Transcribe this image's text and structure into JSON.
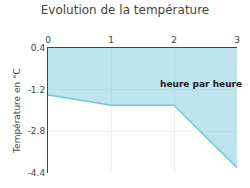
{
  "chart_data": {
    "type": "area",
    "title": "Evolution de la température",
    "y_label": "Température en °C",
    "x": [
      0,
      1,
      2,
      3
    ],
    "series": [
      {
        "name": "Température",
        "color": "#6ec6da",
        "values": [
          -1.4,
          -1.8,
          -1.8,
          -4.2
        ]
      }
    ],
    "xlim": [
      0,
      3
    ],
    "xticks": [
      0,
      1,
      2,
      3
    ],
    "ylim": [
      -4.4,
      0.4
    ],
    "yticks": [
      -4.4,
      -2.8,
      -1.2,
      0.4
    ],
    "grid": true,
    "annotations": [
      {
        "text": "heure par heure",
        "x": 1.75,
        "y": -1.25
      }
    ]
  }
}
